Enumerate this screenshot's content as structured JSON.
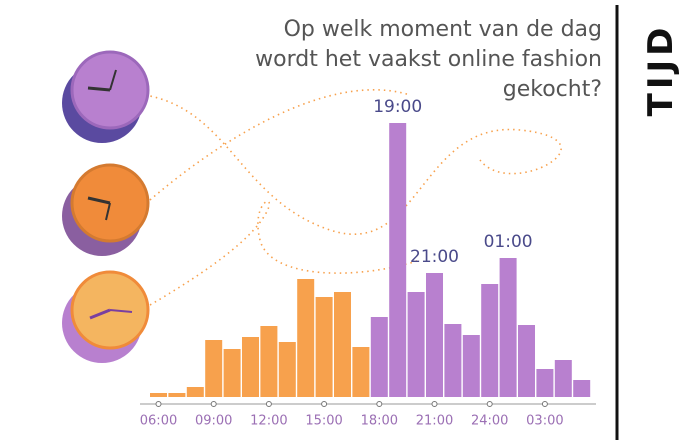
{
  "chart_data": {
    "type": "bar",
    "title": [
      "Op welk moment van de dag",
      "wordt het vaakst online fashion",
      "gekocht?"
    ],
    "side_label": "TIJD",
    "categories": [
      "06:00",
      null,
      null,
      "09:00",
      null,
      null,
      "12:00",
      null,
      null,
      "15:00",
      null,
      null,
      "18:00",
      null,
      null,
      "21:00",
      null,
      null,
      "24:00",
      null,
      null,
      "03:00",
      null,
      null
    ],
    "series": [
      {
        "color": "#f7a14d",
        "values": [
          4,
          4,
          10,
          57,
          48,
          60,
          71,
          55,
          118,
          100,
          105,
          50,
          null,
          null,
          null,
          null,
          null,
          null,
          null,
          null,
          null,
          null,
          null,
          null
        ]
      },
      {
        "color": "#b880cf",
        "values": [
          null,
          null,
          null,
          null,
          null,
          null,
          null,
          null,
          null,
          null,
          null,
          null,
          80,
          274,
          105,
          124,
          73,
          62,
          113,
          139,
          72,
          28,
          37,
          17
        ]
      }
    ],
    "annotations": [
      {
        "label": "19:00",
        "bar": 13
      },
      {
        "label": "21:00",
        "bar": 15
      },
      {
        "label": "01:00",
        "bar": 19
      }
    ]
  }
}
